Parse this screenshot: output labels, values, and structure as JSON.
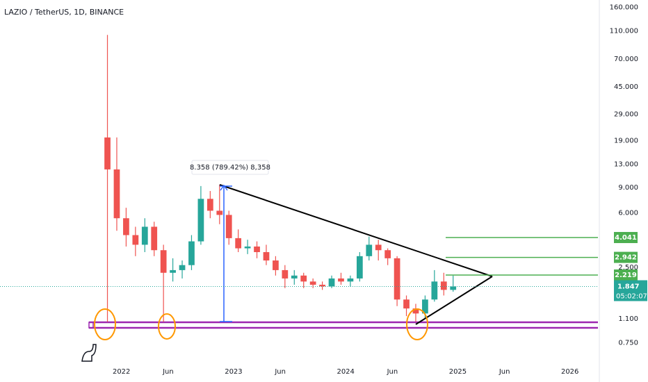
{
  "chart_data": {
    "type": "candlestick",
    "title": "LAZIO / TetherUS, 1D, BINANCE",
    "annotation": "8.358 (789.42%) 8,358",
    "log_scale": true,
    "grid": false,
    "up_color": "#26a69a",
    "down_color": "#ef5350",
    "x": [
      "2021-11",
      "2021-12",
      "2022-01",
      "2022-02",
      "2022-03",
      "2022-04",
      "2022-05",
      "2022-06",
      "2022-07",
      "2022-08",
      "2022-09",
      "2022-10",
      "2022-11",
      "2022-12",
      "2023-01",
      "2023-02",
      "2023-03",
      "2023-04",
      "2023-05",
      "2023-06",
      "2023-07",
      "2023-08",
      "2023-09",
      "2023-10",
      "2023-11",
      "2023-12",
      "2024-01",
      "2024-02",
      "2024-03",
      "2024-04",
      "2024-05",
      "2024-06",
      "2024-07",
      "2024-08",
      "2024-09",
      "2024-10",
      "2024-11",
      "2024-12"
    ],
    "open": [
      20,
      12,
      5.5,
      4.2,
      3.6,
      4.8,
      3.3,
      2.3,
      2.4,
      2.6,
      3.8,
      7.5,
      6.2,
      5.8,
      4.0,
      3.4,
      3.5,
      3.2,
      2.8,
      2.4,
      2.1,
      2.2,
      2.0,
      1.9,
      1.85,
      2.1,
      2.0,
      2.1,
      3.0,
      3.6,
      3.3,
      2.9,
      1.5,
      1.3,
      1.2,
      1.5,
      2.0,
      1.75
    ],
    "high": [
      103,
      20,
      6.5,
      4.8,
      5.5,
      5.2,
      3.6,
      2.9,
      2.8,
      4.2,
      9.2,
      8.5,
      9.4,
      6.2,
      4.6,
      3.9,
      3.8,
      3.6,
      3.0,
      2.6,
      2.4,
      2.3,
      2.1,
      2.0,
      2.2,
      2.3,
      2.2,
      3.2,
      4.1,
      3.9,
      3.4,
      3.0,
      1.6,
      1.4,
      1.6,
      2.4,
      2.3,
      2.2
    ],
    "low": [
      1.05,
      4.5,
      3.5,
      3.0,
      3.2,
      3.0,
      1.05,
      2.0,
      2.1,
      2.4,
      3.6,
      5.5,
      5.0,
      3.6,
      3.2,
      3.1,
      2.9,
      2.6,
      2.2,
      1.8,
      1.9,
      1.8,
      1.8,
      1.75,
      1.8,
      1.9,
      1.85,
      2.0,
      2.8,
      2.8,
      2.6,
      1.35,
      1.15,
      1.05,
      1.1,
      1.45,
      1.6,
      1.7
    ],
    "close": [
      12,
      5.5,
      4.2,
      3.6,
      4.8,
      3.3,
      2.3,
      2.4,
      2.6,
      3.8,
      7.5,
      6.2,
      5.8,
      4.0,
      3.4,
      3.5,
      3.2,
      2.8,
      2.4,
      2.1,
      2.2,
      2.0,
      1.9,
      1.85,
      2.1,
      2.0,
      2.1,
      3.0,
      3.6,
      3.3,
      2.9,
      1.5,
      1.3,
      1.2,
      1.5,
      2.0,
      1.75,
      1.847
    ],
    "xlim": [
      "2020-12",
      "2026-04"
    ],
    "xticks": [
      {
        "value": "2022-01",
        "label": "2022"
      },
      {
        "value": "2022-06",
        "label": "Jun"
      },
      {
        "value": "2023-01",
        "label": "2023"
      },
      {
        "value": "2023-06",
        "label": "Jun"
      },
      {
        "value": "2024-01",
        "label": "2024"
      },
      {
        "value": "2024-06",
        "label": "Jun"
      },
      {
        "value": "2025-01",
        "label": "2025"
      },
      {
        "value": "2025-06",
        "label": "Jun"
      },
      {
        "value": "2026-01",
        "label": "2026"
      }
    ],
    "ylim": [
      0.56,
      180
    ],
    "yticks": [
      {
        "value": 160,
        "label": "160.000"
      },
      {
        "value": 110,
        "label": "110.000"
      },
      {
        "value": 70,
        "label": "70.000"
      },
      {
        "value": 45,
        "label": "45.000"
      },
      {
        "value": 29,
        "label": "29.000"
      },
      {
        "value": 19,
        "label": "19.000"
      },
      {
        "value": 13,
        "label": "13.000"
      },
      {
        "value": 9,
        "label": "9.000"
      },
      {
        "value": 6,
        "label": "6.000"
      },
      {
        "value": 2.5,
        "label": "2.500"
      },
      {
        "value": 1.1,
        "label": "1.100"
      },
      {
        "value": 0.75,
        "label": "0.750"
      }
    ],
    "levels": [
      4.041,
      2.942,
      2.219
    ],
    "level_color": "#4caf50",
    "last_price": 1.847,
    "countdown": "05:02:07"
  }
}
